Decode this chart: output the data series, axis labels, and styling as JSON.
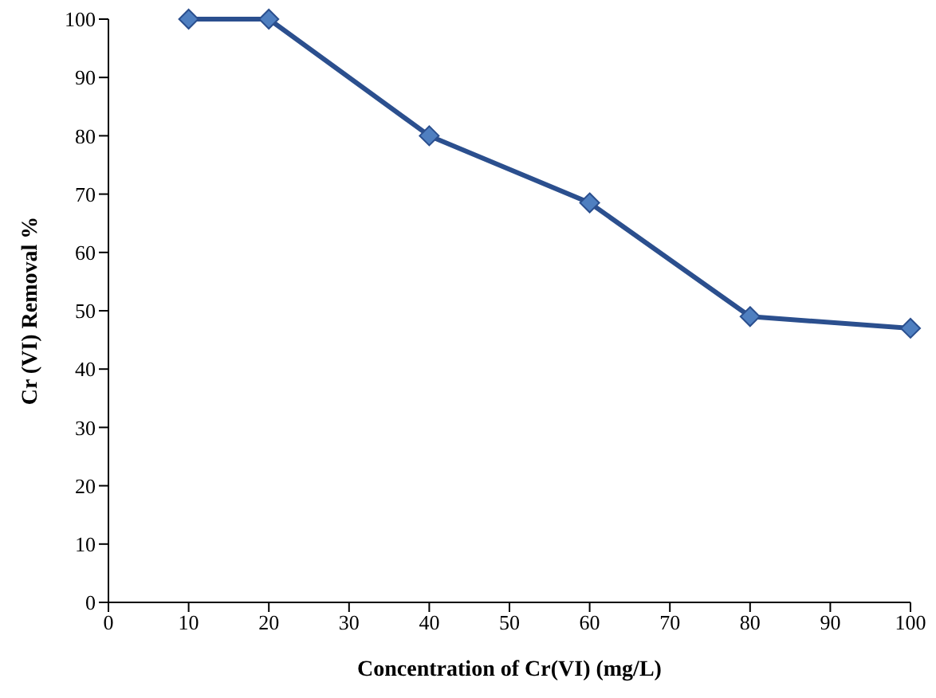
{
  "chart_data": {
    "type": "line",
    "xlabel": "Concentration of Cr(VI) (mg/L)",
    "ylabel": "Cr (VI) Removal %",
    "x": [
      10,
      20,
      40,
      60,
      80,
      100
    ],
    "series": [
      {
        "color": "#2b4f8e",
        "values": [
          100,
          100,
          80,
          68.5,
          49,
          47
        ]
      }
    ],
    "xlim": [
      0,
      100
    ],
    "xticks": [
      0,
      10,
      20,
      30,
      40,
      50,
      60,
      70,
      80,
      90,
      100
    ],
    "ylim": [
      0,
      100
    ],
    "yticks": [
      0,
      10,
      20,
      30,
      40,
      50,
      60,
      70,
      80,
      90,
      100
    ],
    "marker": "diamond",
    "line_style": "solid"
  }
}
